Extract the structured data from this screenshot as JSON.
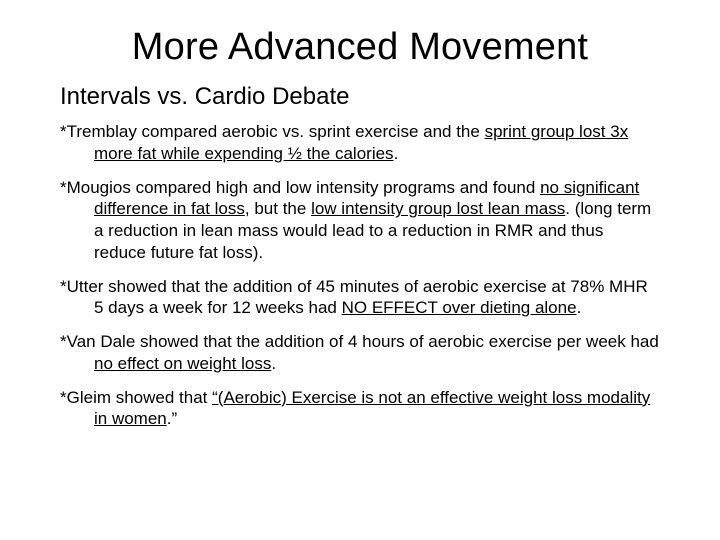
{
  "colors": {
    "background": "#ffffff",
    "text": "#000000"
  },
  "typography": {
    "title_fontsize": 38,
    "subtitle_fontsize": 24,
    "body_fontsize": 17,
    "font_family": "Arial"
  },
  "title": "More Advanced Movement",
  "subtitle": "Intervals vs. Cardio Debate",
  "bullets": [
    {
      "prefix": "*Tremblay compared aerobic vs. sprint exercise and the ",
      "underlined": "sprint group lost 3x more fat while expending ½ the calories",
      "suffix": "."
    },
    {
      "prefix": "*Mougios compared high and low intensity programs and found ",
      "underlined": "no significant difference in fat loss",
      "mid": ", but the ",
      "underlined2": "low intensity group lost lean mass",
      "suffix": ". (long term a reduction in lean mass would lead to a reduction in RMR and thus reduce future fat loss)."
    },
    {
      "prefix": "*Utter showed that the addition of 45 minutes of aerobic exercise at 78% MHR 5 days a week for 12 weeks had ",
      "underlined": "NO EFFECT over dieting alone",
      "suffix": "."
    },
    {
      "prefix": "*Van Dale showed that the addition of 4 hours of aerobic exercise per week had ",
      "underlined": "no effect on weight loss",
      "suffix": "."
    },
    {
      "prefix": "*Gleim showed that ",
      "underlined": "“(Aerobic) Exercise is not an effective weight loss modality in women",
      "suffix": ".”"
    }
  ]
}
